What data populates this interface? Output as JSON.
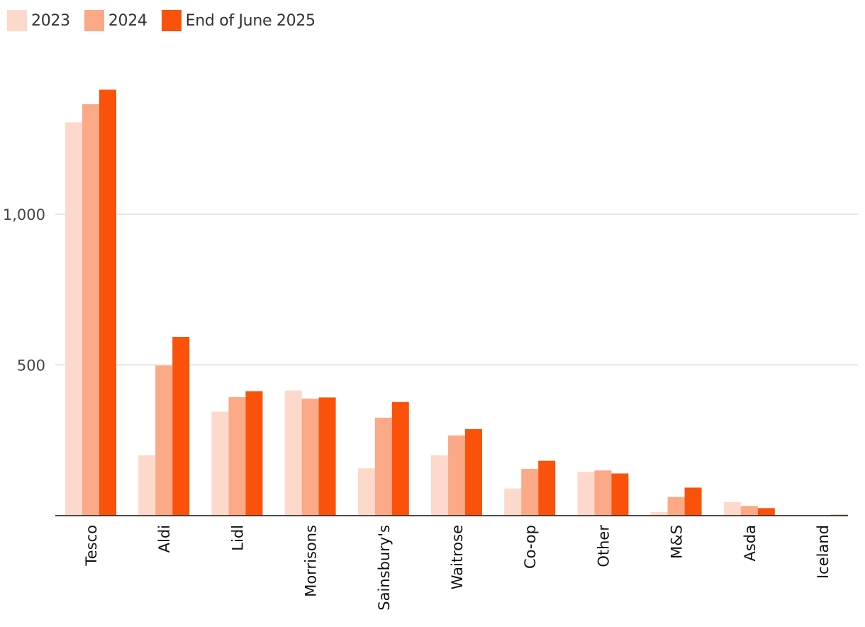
{
  "chart_data": {
    "type": "bar",
    "categories": [
      "Tesco",
      "Aldi",
      "Lidl",
      "Morrisons",
      "Sainsbury's",
      "Waitrose",
      "Co-op",
      "Other",
      "M&S",
      "Asda",
      "Iceland"
    ],
    "series": [
      {
        "name": "2023",
        "color": "#fdd9cc",
        "values": [
          1305,
          200,
          345,
          415,
          157,
          200,
          90,
          145,
          12,
          45,
          0
        ]
      },
      {
        "name": "2024",
        "color": "#fba987",
        "values": [
          1365,
          498,
          393,
          388,
          325,
          266,
          155,
          150,
          62,
          32,
          0
        ]
      },
      {
        "name": "End of June 2025",
        "color": "#fa520a",
        "values": [
          1413,
          593,
          413,
          392,
          377,
          287,
          182,
          140,
          93,
          25,
          3
        ]
      }
    ],
    "yticks": [
      {
        "value": 500,
        "label": "500"
      },
      {
        "value": 1000,
        "label": "1,000"
      }
    ],
    "ylim": [
      0,
      1500
    ],
    "grid": true,
    "legend_position": "top-left",
    "title": "",
    "xlabel": "",
    "ylabel": ""
  }
}
